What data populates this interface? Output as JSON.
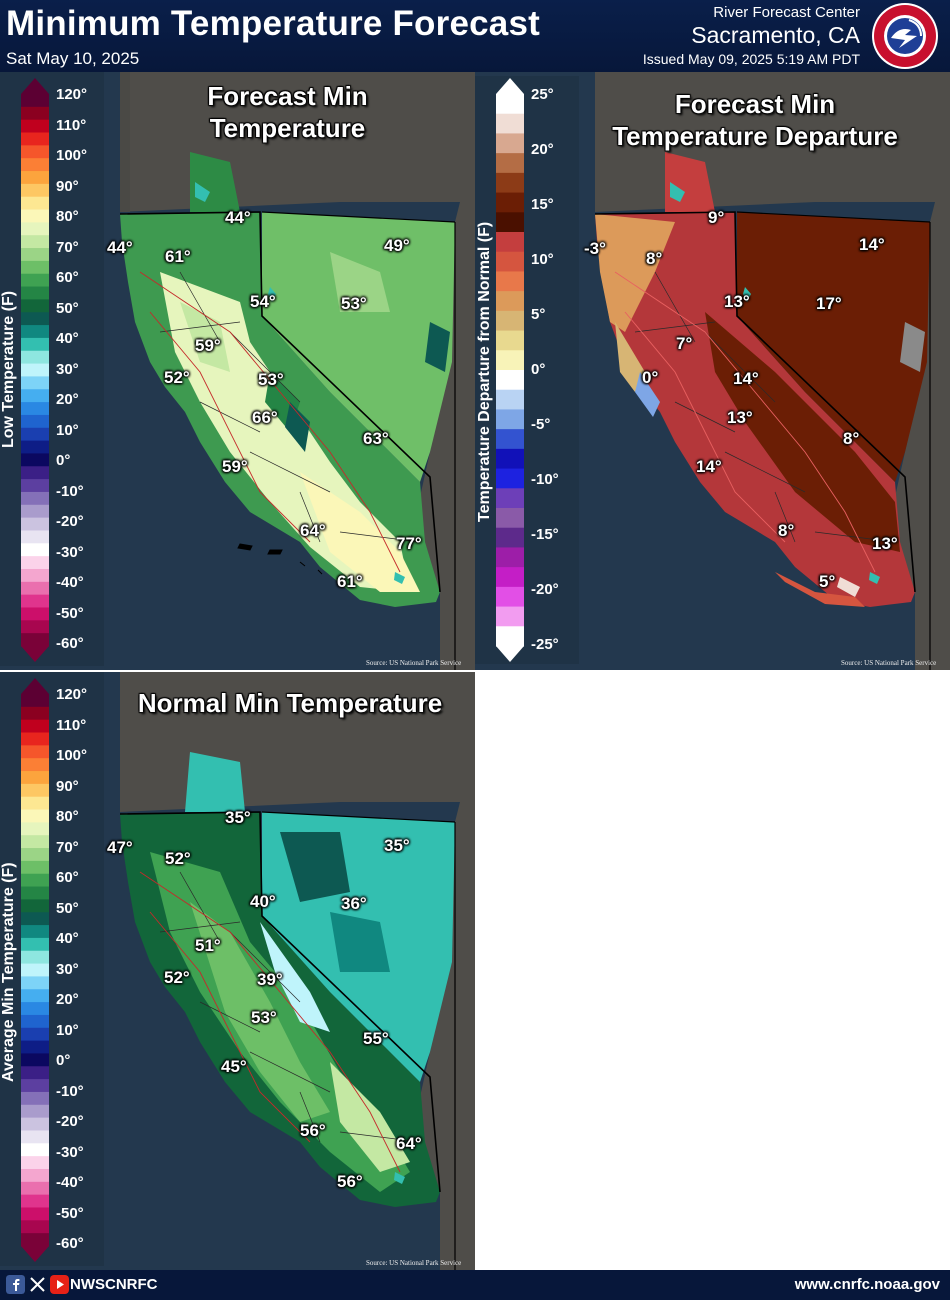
{
  "header": {
    "title": "Minimum Temperature Forecast",
    "date": "Sat May 10, 2025",
    "rfc_line1": "River Forecast Center",
    "rfc_line2": "Sacramento, CA",
    "issued": "Issued May 09, 2025 5:19 AM PDT",
    "logo_text": "NATIONAL WEATHER SERVICE"
  },
  "panels": {
    "forecast": {
      "title_line1": "Forecast Min",
      "title_line2": "Temperature",
      "source": "Source: US National Park Service",
      "legend_title": "Low Temperature (F)",
      "labels": [
        "44°",
        "44°",
        "61°",
        "49°",
        "54°",
        "53°",
        "59°",
        "52°",
        "53°",
        "66°",
        "63°",
        "59°",
        "64°",
        "77°",
        "61°"
      ]
    },
    "departure": {
      "title_line1": "Forecast Min",
      "title_line2": "Temperature Departure",
      "source": "Source: US National Park Service",
      "legend_title": "Temperature Departure from Normal (F)",
      "labels": [
        "9°",
        "-3°",
        "8°",
        "14°",
        "13°",
        "17°",
        "7°",
        "0°",
        "14°",
        "13°",
        "8°",
        "14°",
        "8°",
        "13°",
        "5°"
      ]
    },
    "normal": {
      "title": "Normal Min Temperature",
      "source": "Source: US National Park Service",
      "legend_title": "Average Min Temperature (F)",
      "labels": [
        "35°",
        "47°",
        "52°",
        "35°",
        "40°",
        "36°",
        "51°",
        "52°",
        "39°",
        "53°",
        "55°",
        "45°",
        "56°",
        "64°",
        "56°"
      ]
    }
  },
  "legend_temp": {
    "ticks": [
      "120°",
      "110°",
      "100°",
      "90°",
      "80°",
      "70°",
      "60°",
      "50°",
      "40°",
      "30°",
      "20°",
      "10°",
      "0°",
      "-10°",
      "-20°",
      "-30°",
      "-40°",
      "-50°",
      "-60°"
    ],
    "colors": [
      "#5c0033",
      "#8b0020",
      "#c0001e",
      "#e8251e",
      "#f5562b",
      "#fb7f35",
      "#fca43d",
      "#fdc763",
      "#fde792",
      "#fbf7b8",
      "#e6f5bd",
      "#c4e8a3",
      "#9bd486",
      "#6dbf67",
      "#3fa252",
      "#248545",
      "#12663a",
      "#0d5952",
      "#108880",
      "#33bfb0",
      "#8ee6e0",
      "#bff4fb",
      "#7dd3f7",
      "#45aef0",
      "#2a88e3",
      "#1f64cf",
      "#1a3fb0",
      "#0e1d86",
      "#0b0860",
      "#3b1f86",
      "#5c3fa0",
      "#8470b8",
      "#a99ccc",
      "#cbc3e0",
      "#e8e4f2",
      "#ffffff",
      "#fbd3ea",
      "#f4a6cf",
      "#ea6fae",
      "#e0348d",
      "#cc0f6a",
      "#a8064f",
      "#7a0238"
    ]
  },
  "legend_departure": {
    "ticks": [
      "25°",
      "20°",
      "15°",
      "10°",
      "5°",
      "0°",
      "-5°",
      "-10°",
      "-15°",
      "-20°",
      "-25°"
    ],
    "colors": [
      "#ffffff",
      "#f0ddd5",
      "#d8a890",
      "#b46d45",
      "#8c3b17",
      "#6b1e05",
      "#4a1000",
      "#c43e3e",
      "#d5553f",
      "#e8784a",
      "#dc9a5a",
      "#d7b574",
      "#e8d98f",
      "#f8f3b8",
      "#ffffff",
      "#b9d3f3",
      "#7ea6e6",
      "#3353d0",
      "#1111b8",
      "#1d22e0",
      "#6d3fb8",
      "#8a5aa8",
      "#5d2a8b",
      "#9d1ea8",
      "#c41ec6",
      "#e24fe6",
      "#f29cf0",
      "#ffffff"
    ]
  },
  "footer": {
    "handle": "NWSCNRFC",
    "url": "www.cnrfc.noaa.gov",
    "icons": [
      "facebook-icon",
      "x-icon",
      "youtube-icon"
    ]
  },
  "colors": {
    "header_bg": "#0a1f4a",
    "panel_bg": "#23384e",
    "land_dark": "#4b4b48"
  }
}
